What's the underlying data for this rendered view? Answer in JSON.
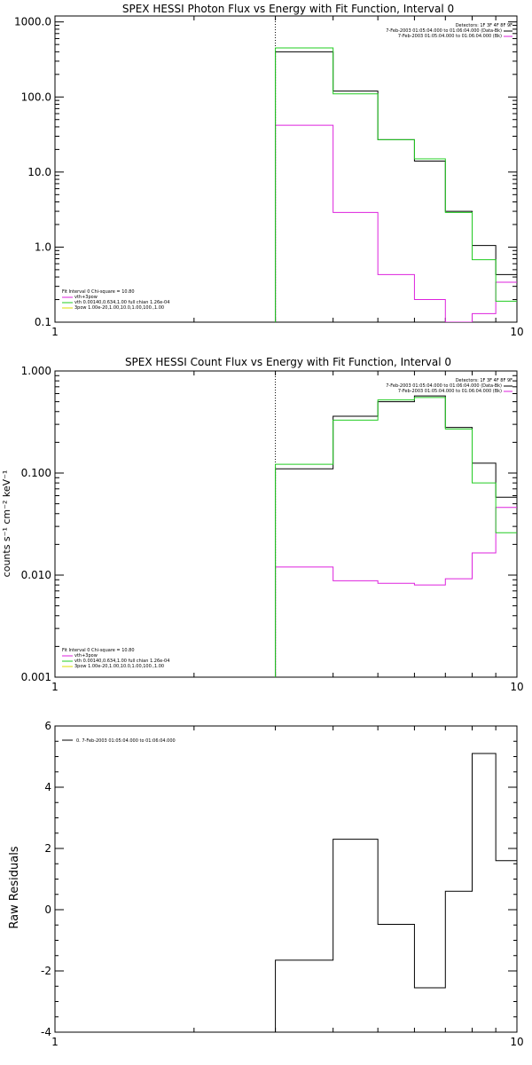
{
  "colors": {
    "data": "#000000",
    "model": "#dd22dd",
    "fit": "#22cc22",
    "thick": "#dddd00",
    "axes": "#000000"
  },
  "chart_data": [
    {
      "type": "line",
      "title": "SPEX HESSI Photon Flux vs Energy with Fit Function, Interval 0",
      "xlabel": "",
      "ylabel": "",
      "xscale": "log",
      "yscale": "log",
      "xlim": [
        1,
        10
      ],
      "ylim": [
        0.1,
        1200
      ],
      "xticks": [
        {
          "v": 1,
          "label": "1"
        },
        {
          "v": 10,
          "label": "10"
        }
      ],
      "yticks": [
        {
          "v": 1000,
          "label": "1000.0"
        },
        {
          "v": 100,
          "label": "100.0"
        },
        {
          "v": 10,
          "label": "10.0"
        },
        {
          "v": 1,
          "label": "1.0"
        },
        {
          "v": 0.1,
          "label": "0.1"
        }
      ],
      "vline": 3,
      "header_lines": [
        "Detectors: 1F 3F 4F 8F 9F",
        "7-Feb-2003 01:05:04.000 to 01:06:04.000 (Data-Bk)",
        "7-Feb-2003 01:05:04.000 to 01:06:04.000 (Bk)"
      ],
      "fit_lines": [
        "Fit Interval 0   Chi-square = 10.80",
        "vth+3pow",
        "vth 0.00140,0.634,1.00   full chian 1.26e-04",
        "3pow 1.00e-20,1.00,10.0,1.00,100.,1.00"
      ],
      "edges": [
        3,
        4,
        5,
        6,
        7,
        8,
        9,
        10
      ],
      "series": [
        {
          "name": "data",
          "values": [
            400,
            120,
            27,
            14,
            3,
            1.05,
            0.43
          ]
        },
        {
          "name": "fit",
          "values": [
            450,
            110,
            27,
            15,
            2.9,
            0.68,
            0.19
          ]
        },
        {
          "name": "model",
          "values": [
            42,
            2.9,
            0.43,
            0.2,
            0.1,
            0.13,
            0.34
          ]
        }
      ]
    },
    {
      "type": "line",
      "title": "SPEX HESSI Count Flux vs Energy with Fit Function, Interval 0",
      "xlabel": "",
      "ylabel": "counts s⁻¹ cm⁻² keV⁻¹",
      "xscale": "log",
      "yscale": "log",
      "xlim": [
        1,
        10
      ],
      "ylim": [
        0.001,
        1.0
      ],
      "xticks": [
        {
          "v": 1,
          "label": "1"
        },
        {
          "v": 10,
          "label": "10"
        }
      ],
      "yticks": [
        {
          "v": 1,
          "label": "1.000"
        },
        {
          "v": 0.1,
          "label": "0.100"
        },
        {
          "v": 0.01,
          "label": "0.010"
        },
        {
          "v": 0.001,
          "label": "0.001"
        }
      ],
      "vline": 3,
      "header_lines": [
        "Detectors: 1F 3F 4F 8F 9F",
        "7-Feb-2003 01:05:04.000 to 01:06:04.000 (Data-Bk)",
        "7-Feb-2003 01:05:04.000 to 01:06:04.000 (Bk)"
      ],
      "fit_lines": [
        "Fit Interval 0   Chi-square = 10.80",
        "vth+3pow",
        "vth 0.00140,0.634,1.00   full chian 1.26e-04",
        "3pow 1.00e-20,1.00,10.0,1.00,100.,1.00"
      ],
      "edges": [
        3,
        4,
        5,
        6,
        7,
        8,
        9,
        10
      ],
      "series": [
        {
          "name": "data",
          "values": [
            0.11,
            0.36,
            0.5,
            0.57,
            0.28,
            0.125,
            0.058
          ]
        },
        {
          "name": "fit",
          "values": [
            0.122,
            0.33,
            0.52,
            0.55,
            0.27,
            0.08,
            0.026
          ]
        },
        {
          "name": "model",
          "values": [
            0.012,
            0.0088,
            0.0083,
            0.008,
            0.0092,
            0.0165,
            0.046
          ]
        }
      ]
    },
    {
      "type": "line",
      "title": "",
      "xlabel": "",
      "ylabel": "Raw Residuals",
      "xscale": "log",
      "yscale": "linear",
      "xlim": [
        1,
        10
      ],
      "ylim": [
        -4,
        6
      ],
      "xticks": [
        {
          "v": 1,
          "label": "1"
        },
        {
          "v": 10,
          "label": "10"
        }
      ],
      "yticks": [
        {
          "v": 6,
          "label": "6"
        },
        {
          "v": 4,
          "label": "4"
        },
        {
          "v": 2,
          "label": "2"
        },
        {
          "v": 0,
          "label": "0"
        },
        {
          "v": -2,
          "label": "-2"
        },
        {
          "v": -4,
          "label": "-4"
        }
      ],
      "legend": "0.  7-Feb-2003 01:05:04.000 to 01:06:04.000",
      "edges": [
        3,
        4,
        5,
        6,
        7,
        8,
        9,
        10
      ],
      "series": [
        {
          "name": "residuals",
          "values": [
            -1.65,
            2.3,
            -0.48,
            -2.55,
            0.6,
            5.1,
            1.6
          ]
        }
      ]
    }
  ]
}
